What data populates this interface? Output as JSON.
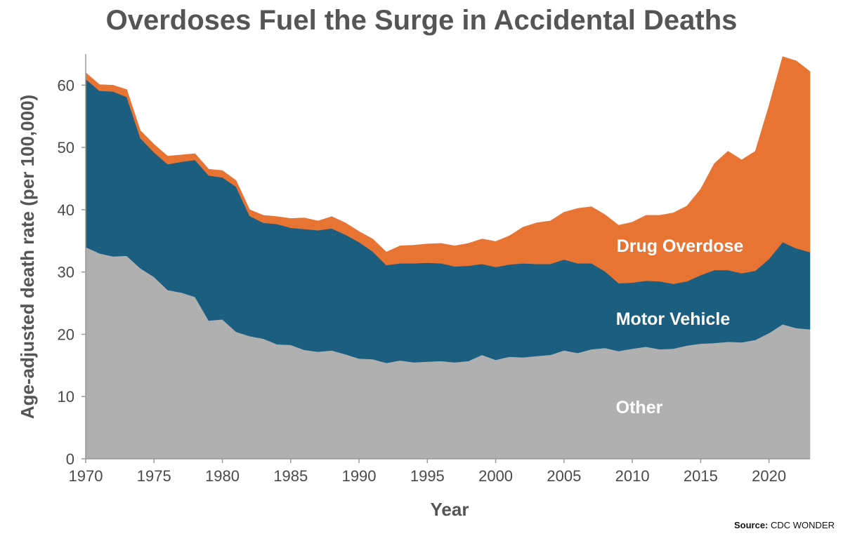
{
  "chart_data": {
    "type": "area",
    "stacked": true,
    "title": "Overdoses Fuel the Surge in Accidental Deaths",
    "xlabel": "Year",
    "ylabel": "Age-adjusted death rate (per 100,000)",
    "xlim": [
      1970,
      2023
    ],
    "ylim": [
      0,
      65
    ],
    "xticks": [
      "1970",
      "1975",
      "1980",
      "1985",
      "1990",
      "1995",
      "2000",
      "2005",
      "2010",
      "2015",
      "2020"
    ],
    "yticks": [
      "0",
      "10",
      "20",
      "30",
      "40",
      "50",
      "60"
    ],
    "x": [
      1970,
      1971,
      1972,
      1973,
      1974,
      1975,
      1976,
      1977,
      1978,
      1979,
      1980,
      1981,
      1982,
      1983,
      1984,
      1985,
      1986,
      1987,
      1988,
      1989,
      1990,
      1991,
      1992,
      1993,
      1994,
      1995,
      1996,
      1997,
      1998,
      1999,
      2000,
      2001,
      2002,
      2003,
      2004,
      2005,
      2006,
      2007,
      2008,
      2009,
      2010,
      2011,
      2012,
      2013,
      2014,
      2015,
      2016,
      2017,
      2018,
      2019,
      2020,
      2021,
      2022,
      2023
    ],
    "series": [
      {
        "name": "Other",
        "color": "#b0b0b0",
        "values": [
          34.0,
          33.0,
          32.5,
          32.6,
          30.6,
          29.2,
          27.1,
          26.7,
          26.0,
          22.2,
          22.4,
          20.4,
          19.7,
          19.3,
          18.4,
          18.3,
          17.5,
          17.2,
          17.4,
          16.8,
          16.1,
          16.0,
          15.4,
          15.8,
          15.5,
          15.6,
          15.7,
          15.5,
          15.7,
          16.7,
          15.9,
          16.4,
          16.3,
          16.5,
          16.7,
          17.4,
          17.0,
          17.6,
          17.8,
          17.3,
          17.7,
          18.0,
          17.6,
          17.7,
          18.2,
          18.5,
          18.6,
          18.8,
          18.7,
          19.1,
          20.2,
          21.6,
          21.0,
          20.8
        ]
      },
      {
        "name": "Motor Vehicle",
        "color": "#1b5e80",
        "values": [
          27.0,
          26.1,
          26.5,
          25.5,
          20.9,
          20.0,
          20.2,
          21.0,
          22.0,
          23.3,
          22.8,
          23.3,
          19.3,
          18.6,
          19.3,
          18.8,
          19.4,
          19.5,
          19.6,
          19.2,
          18.7,
          17.3,
          15.7,
          15.6,
          15.9,
          15.9,
          15.7,
          15.4,
          15.3,
          14.6,
          14.9,
          14.8,
          15.1,
          14.8,
          14.6,
          14.6,
          14.4,
          13.8,
          12.3,
          10.9,
          10.6,
          10.6,
          10.9,
          10.4,
          10.3,
          11.0,
          11.7,
          11.5,
          11.1,
          11.1,
          11.9,
          13.2,
          12.8,
          12.4
        ]
      },
      {
        "name": "Drug Overdose",
        "color": "#e87434",
        "values": [
          1.0,
          1.0,
          1.0,
          1.2,
          1.2,
          1.3,
          1.3,
          1.1,
          1.0,
          1.0,
          1.1,
          1.0,
          1.0,
          1.2,
          1.2,
          1.5,
          1.8,
          1.5,
          1.9,
          1.9,
          1.7,
          2.0,
          2.1,
          2.8,
          2.9,
          3.0,
          3.2,
          3.3,
          3.6,
          4.0,
          4.1,
          4.6,
          5.8,
          6.6,
          6.9,
          7.6,
          8.8,
          9.1,
          9.1,
          9.3,
          9.7,
          10.5,
          10.6,
          11.4,
          12.1,
          13.8,
          17.1,
          19.1,
          18.2,
          19.2,
          24.6,
          29.8,
          30.1,
          29.0
        ]
      }
    ],
    "annotations": {
      "other": "Other",
      "motor_vehicle": "Motor Vehicle",
      "drug_overdose": "Drug Overdose"
    }
  },
  "source": {
    "label": "Source:",
    "text": " CDC WONDER"
  }
}
